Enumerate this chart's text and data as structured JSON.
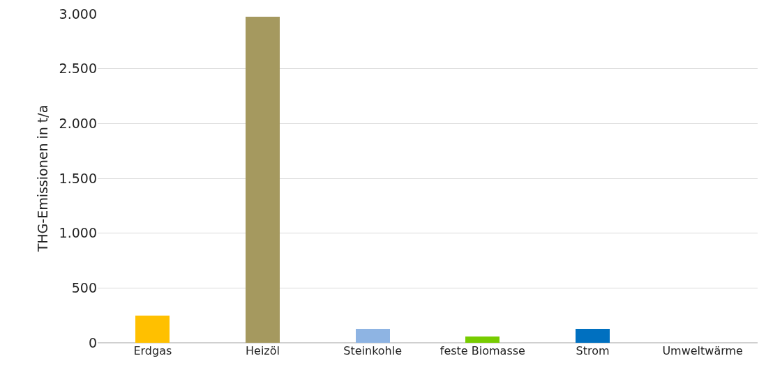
{
  "chart_data": {
    "type": "bar",
    "ylabel": "THG-Emissionen in t/a",
    "categories": [
      "Erdgas",
      "Heizöl",
      "Steinkohle",
      "feste Biomasse",
      "Strom",
      "Umweltwärme"
    ],
    "values": [
      245,
      2975,
      130,
      60,
      125,
      0
    ],
    "colors": [
      "#ffc000",
      "#a5995f",
      "#8eb4e3",
      "#77cc00",
      "#0070c0",
      "#a5a5a5"
    ],
    "ylim": [
      0,
      3000
    ],
    "yticks": [
      {
        "value": 0,
        "label": "0"
      },
      {
        "value": 500,
        "label": "500"
      },
      {
        "value": 1000,
        "label": "1.000"
      },
      {
        "value": 1500,
        "label": "1.500"
      },
      {
        "value": 2000,
        "label": "2.000"
      },
      {
        "value": 2500,
        "label": "2.500"
      },
      {
        "value": 3000,
        "label": "3.000"
      }
    ],
    "grid": "y"
  }
}
